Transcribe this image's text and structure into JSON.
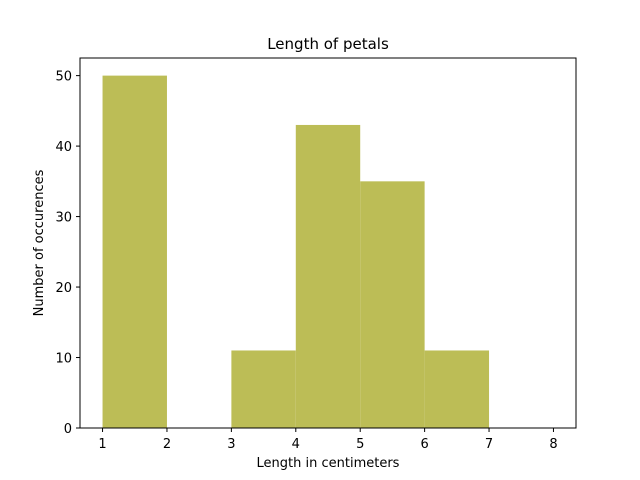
{
  "chart_data": {
    "type": "bar",
    "title": "Length of petals",
    "xlabel": "Length in centimeters",
    "ylabel": "Number of occurences",
    "bins": [
      {
        "x0": 1,
        "x1": 2,
        "count": 50
      },
      {
        "x0": 2,
        "x1": 3,
        "count": 0
      },
      {
        "x0": 3,
        "x1": 4,
        "count": 11
      },
      {
        "x0": 4,
        "x1": 5,
        "count": 43
      },
      {
        "x0": 5,
        "x1": 6,
        "count": 35
      },
      {
        "x0": 6,
        "x1": 7,
        "count": 11
      },
      {
        "x0": 7,
        "x1": 8,
        "count": 0
      }
    ],
    "xlim": [
      0.65,
      8.35
    ],
    "ylim": [
      0,
      52.5
    ],
    "xticks": [
      1,
      2,
      3,
      4,
      5,
      6,
      7,
      8
    ],
    "yticks": [
      0,
      10,
      20,
      30,
      40,
      50
    ],
    "bar_color": "#bcbd56",
    "grid": false,
    "legend": false
  }
}
